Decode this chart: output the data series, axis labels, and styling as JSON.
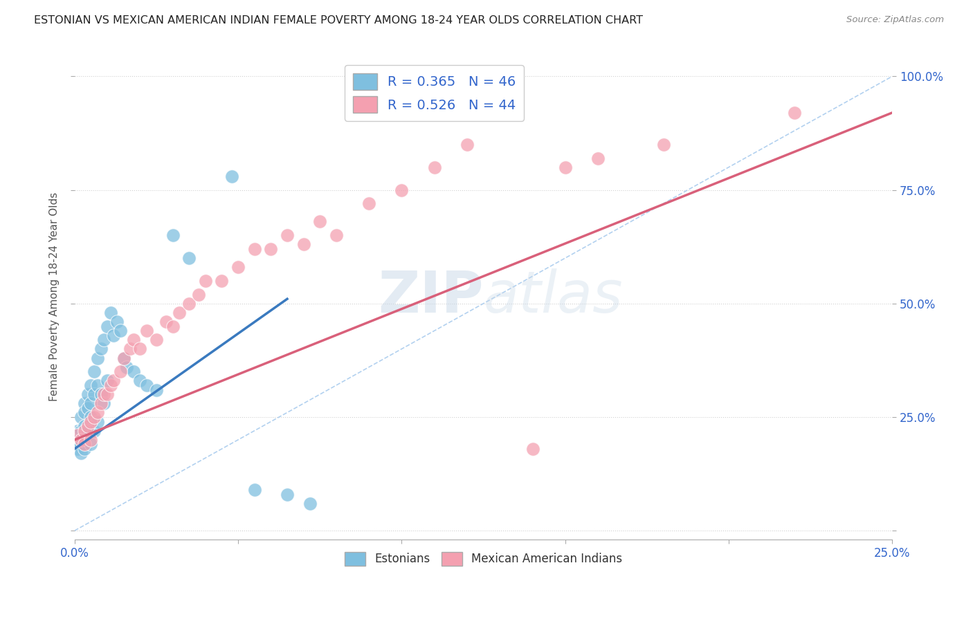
{
  "title": "ESTONIAN VS MEXICAN AMERICAN INDIAN FEMALE POVERTY AMONG 18-24 YEAR OLDS CORRELATION CHART",
  "source": "Source: ZipAtlas.com",
  "ylabel": "Female Poverty Among 18-24 Year Olds",
  "xlim": [
    0.0,
    0.25
  ],
  "ylim": [
    -0.02,
    1.05
  ],
  "xticks": [
    0.0,
    0.05,
    0.1,
    0.15,
    0.2,
    0.25
  ],
  "yticks": [
    0.0,
    0.25,
    0.5,
    0.75,
    1.0
  ],
  "xtick_labels": [
    "0.0%",
    "",
    "",
    "",
    "",
    "25.0%"
  ],
  "ytick_labels": [
    "",
    "25.0%",
    "50.0%",
    "75.0%",
    "100.0%"
  ],
  "blue_R": 0.365,
  "blue_N": 46,
  "pink_R": 0.526,
  "pink_N": 44,
  "blue_color": "#7fbfdf",
  "pink_color": "#f4a0b0",
  "blue_line_color": "#3a7abf",
  "pink_line_color": "#d9607a",
  "ref_line_color": "#aaccee",
  "background_color": "#ffffff",
  "watermark_zip": "ZIP",
  "watermark_atlas": "atlas",
  "blue_scatter_x": [
    0.001,
    0.001,
    0.001,
    0.002,
    0.002,
    0.002,
    0.002,
    0.003,
    0.003,
    0.003,
    0.003,
    0.004,
    0.004,
    0.004,
    0.005,
    0.005,
    0.005,
    0.005,
    0.006,
    0.006,
    0.006,
    0.007,
    0.007,
    0.007,
    0.008,
    0.008,
    0.009,
    0.009,
    0.01,
    0.01,
    0.011,
    0.012,
    0.013,
    0.014,
    0.015,
    0.016,
    0.018,
    0.02,
    0.022,
    0.025,
    0.03,
    0.035,
    0.048,
    0.055,
    0.065,
    0.072
  ],
  "blue_scatter_y": [
    0.22,
    0.2,
    0.18,
    0.25,
    0.22,
    0.2,
    0.17,
    0.28,
    0.26,
    0.23,
    0.18,
    0.3,
    0.27,
    0.22,
    0.32,
    0.28,
    0.25,
    0.19,
    0.35,
    0.3,
    0.22,
    0.38,
    0.32,
    0.24,
    0.4,
    0.3,
    0.42,
    0.28,
    0.45,
    0.33,
    0.48,
    0.43,
    0.46,
    0.44,
    0.38,
    0.36,
    0.35,
    0.33,
    0.32,
    0.31,
    0.65,
    0.6,
    0.78,
    0.09,
    0.08,
    0.06
  ],
  "pink_scatter_x": [
    0.001,
    0.002,
    0.003,
    0.003,
    0.004,
    0.005,
    0.005,
    0.006,
    0.007,
    0.008,
    0.009,
    0.01,
    0.011,
    0.012,
    0.014,
    0.015,
    0.017,
    0.018,
    0.02,
    0.022,
    0.025,
    0.028,
    0.03,
    0.032,
    0.035,
    0.038,
    0.04,
    0.045,
    0.05,
    0.055,
    0.06,
    0.065,
    0.07,
    0.075,
    0.08,
    0.09,
    0.1,
    0.11,
    0.12,
    0.14,
    0.15,
    0.16,
    0.18,
    0.22
  ],
  "pink_scatter_y": [
    0.21,
    0.2,
    0.22,
    0.19,
    0.23,
    0.24,
    0.2,
    0.25,
    0.26,
    0.28,
    0.3,
    0.3,
    0.32,
    0.33,
    0.35,
    0.38,
    0.4,
    0.42,
    0.4,
    0.44,
    0.42,
    0.46,
    0.45,
    0.48,
    0.5,
    0.52,
    0.55,
    0.55,
    0.58,
    0.62,
    0.62,
    0.65,
    0.63,
    0.68,
    0.65,
    0.72,
    0.75,
    0.8,
    0.85,
    0.18,
    0.8,
    0.82,
    0.85,
    0.92
  ],
  "blue_line_x0": 0.0,
  "blue_line_y0": 0.18,
  "blue_line_x1": 0.065,
  "blue_line_y1": 0.51,
  "pink_line_x0": 0.0,
  "pink_line_y0": 0.2,
  "pink_line_x1": 0.25,
  "pink_line_y1": 0.92
}
